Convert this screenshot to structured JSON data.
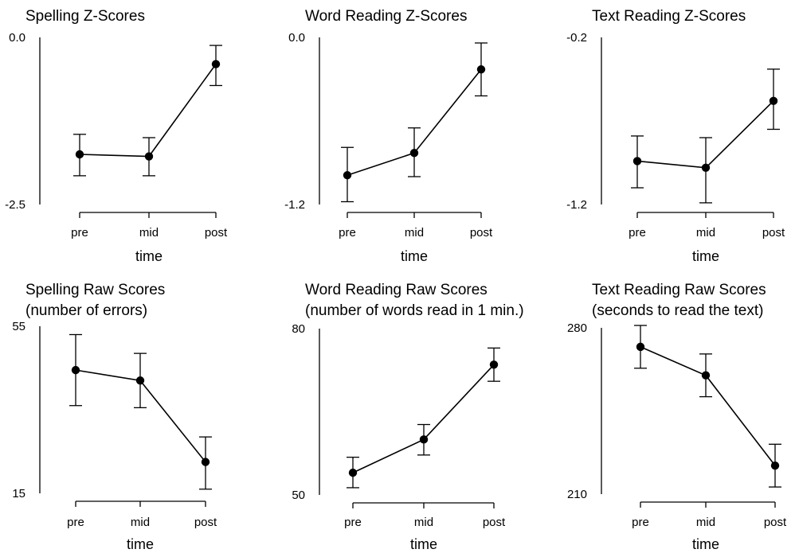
{
  "chart_data": [
    {
      "type": "line",
      "title": "Spelling Z-Scores",
      "subtitle": "",
      "xlabel": "time",
      "categories": [
        "pre",
        "mid",
        "post"
      ],
      "yticks": [
        "0.0",
        "-2.5"
      ],
      "ylim": [
        -2.5,
        0.0
      ],
      "series": [
        {
          "values": [
            -1.75,
            -1.78,
            -0.4
          ],
          "lower": [
            -2.07,
            -2.07,
            -0.72
          ],
          "upper": [
            -1.45,
            -1.5,
            -0.12
          ]
        }
      ]
    },
    {
      "type": "line",
      "title": "Word Reading Z-Scores",
      "subtitle": "",
      "xlabel": "time",
      "categories": [
        "pre",
        "mid",
        "post"
      ],
      "yticks": [
        "0.0",
        "-1.2"
      ],
      "ylim": [
        -1.2,
        0.0
      ],
      "series": [
        {
          "values": [
            -0.99,
            -0.83,
            -0.23
          ],
          "lower": [
            -1.18,
            -1.0,
            -0.42
          ],
          "upper": [
            -0.79,
            -0.65,
            -0.04
          ]
        }
      ]
    },
    {
      "type": "line",
      "title": "Text Reading Z-Scores",
      "subtitle": "",
      "xlabel": "time",
      "categories": [
        "pre",
        "mid",
        "post"
      ],
      "yticks": [
        "-0.2",
        "-1.2"
      ],
      "ylim": [
        -1.2,
        -0.2
      ],
      "series": [
        {
          "values": [
            -0.94,
            -0.98,
            -0.58
          ],
          "lower": [
            -1.1,
            -1.19,
            -0.75
          ],
          "upper": [
            -0.79,
            -0.8,
            -0.39
          ]
        }
      ]
    },
    {
      "type": "line",
      "title": "Spelling Raw Scores",
      "subtitle": "(number of errors)",
      "xlabel": "time",
      "categories": [
        "pre",
        "mid",
        "post"
      ],
      "yticks": [
        "55",
        "15"
      ],
      "ylim": [
        15,
        55
      ],
      "series": [
        {
          "values": [
            44.5,
            42,
            22.5
          ],
          "lower": [
            36,
            35.5,
            16
          ],
          "upper": [
            53,
            48.5,
            28.5
          ]
        }
      ]
    },
    {
      "type": "line",
      "title": "Word Reading Raw Scores",
      "subtitle": "(number of words read in 1 min.)",
      "xlabel": "time",
      "categories": [
        "pre",
        "mid",
        "post"
      ],
      "yticks": [
        "80",
        "50"
      ],
      "ylim": [
        50,
        80
      ],
      "series": [
        {
          "values": [
            54,
            60,
            73.5
          ],
          "lower": [
            51.3,
            57.2,
            70.5
          ],
          "upper": [
            56.8,
            62.7,
            76.5
          ]
        }
      ]
    },
    {
      "type": "line",
      "title": "Text Reading Raw Scores",
      "subtitle": "(seconds to read the text)",
      "xlabel": "time",
      "categories": [
        "pre",
        "mid",
        "post"
      ],
      "yticks": [
        "280",
        "210"
      ],
      "ylim": [
        210,
        280
      ],
      "series": [
        {
          "values": [
            272,
            260,
            222
          ],
          "lower": [
            263,
            251,
            213
          ],
          "upper": [
            281,
            269,
            231
          ]
        }
      ]
    }
  ]
}
